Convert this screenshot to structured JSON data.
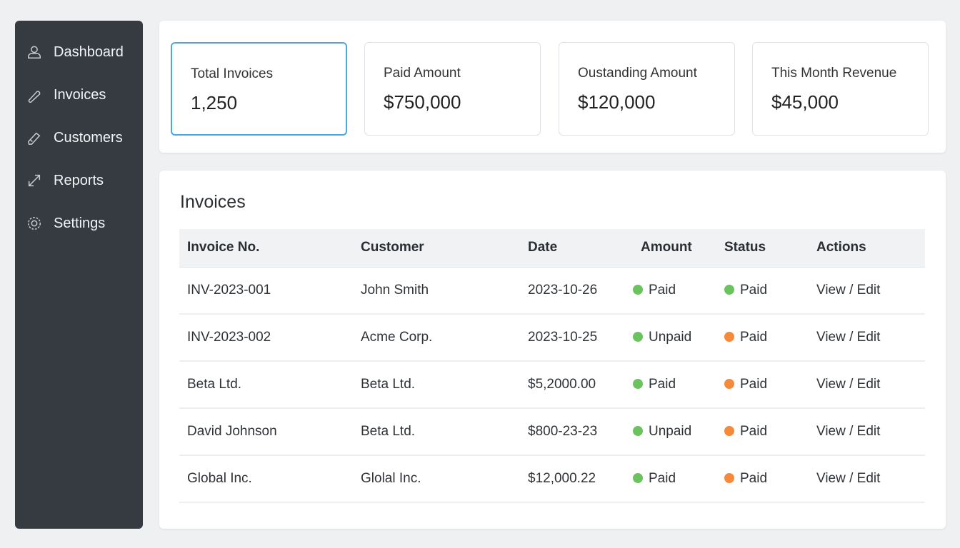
{
  "sidebar": {
    "items": [
      {
        "label": "Dashboard",
        "icon": "user-icon"
      },
      {
        "label": "Invoices",
        "icon": "paperclip-icon"
      },
      {
        "label": "Customers",
        "icon": "pencil-icon"
      },
      {
        "label": "Reports",
        "icon": "arrows-diagonal-icon"
      },
      {
        "label": "Settings",
        "icon": "gear-icon"
      }
    ]
  },
  "stats": [
    {
      "label": "Total Invoices",
      "value": "1,250"
    },
    {
      "label": "Paid Amount",
      "value": "$750,000"
    },
    {
      "label": "Oustanding Amount",
      "value": "$120,000"
    },
    {
      "label": "This Month Revenue",
      "value": "$45,000"
    }
  ],
  "invoices": {
    "title": "Invoices",
    "columns": [
      "Invoice No.",
      "Customer",
      "Date",
      "Amount",
      "Status",
      "Actions"
    ],
    "rows": [
      {
        "invoice": "INV-2023-001",
        "customer": "John Smith",
        "date": "2023-10-26",
        "amount": "Paid",
        "amount_dot": "green",
        "status": "Paid",
        "status_dot": "green",
        "actions": "View / Edit"
      },
      {
        "invoice": "INV-2023-002",
        "customer": "Acme Corp.",
        "date": "2023-10-25",
        "amount": "Unpaid",
        "amount_dot": "green",
        "status": "Paid",
        "status_dot": "orange",
        "actions": "View / Edit"
      },
      {
        "invoice": "Beta Ltd.",
        "customer": "Beta Ltd.",
        "date": "$5,2000.00",
        "amount": "Paid",
        "amount_dot": "green",
        "status": "Paid",
        "status_dot": "orange",
        "actions": "View / Edit"
      },
      {
        "invoice": "David Johnson",
        "customer": "Beta Ltd.",
        "date": "$800-23-23",
        "amount": "Unpaid",
        "amount_dot": "green",
        "status": "Paid",
        "status_dot": "orange",
        "actions": "View / Edit"
      },
      {
        "invoice": "Global Inc.",
        "customer": "Glolal Inc.",
        "date": "$12,000.22",
        "amount": "Paid",
        "amount_dot": "green",
        "status": "Paid",
        "status_dot": "orange",
        "actions": "View / Edit"
      }
    ]
  },
  "colors": {
    "green": "#6cc25e",
    "orange": "#f58a3a",
    "accent": "#4aa8e0",
    "sidebar": "#363b42"
  }
}
